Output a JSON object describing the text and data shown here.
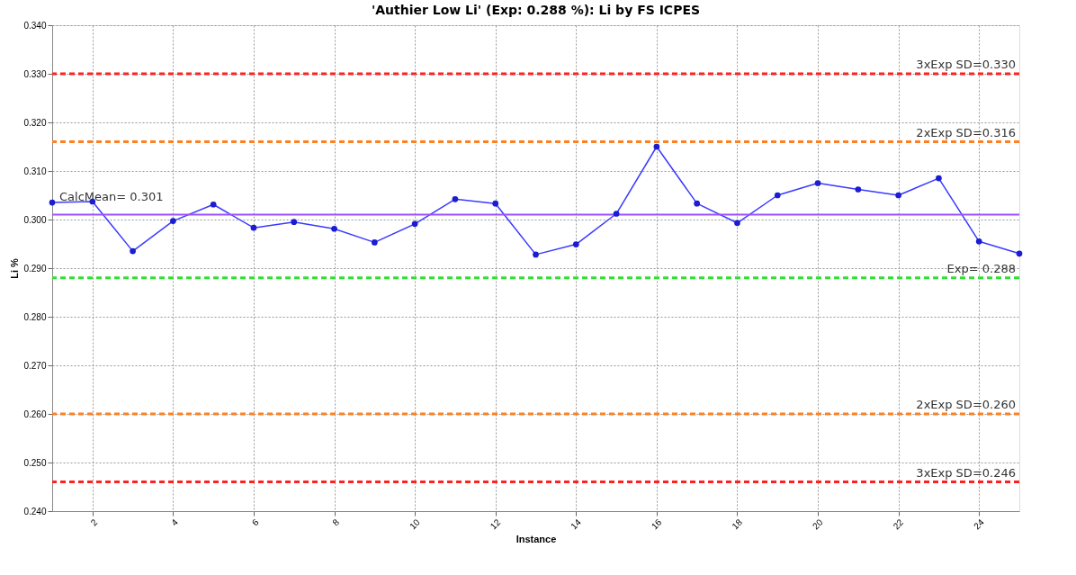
{
  "chart_data": {
    "type": "line",
    "title": "'Authier Low Li' (Exp: 0.288 %): Li by FS ICPES",
    "xlabel": "Instance",
    "ylabel": "Li %",
    "x": [
      1,
      2,
      3,
      4,
      5,
      6,
      7,
      8,
      9,
      10,
      11,
      12,
      13,
      14,
      15,
      16,
      17,
      18,
      19,
      20,
      21,
      22,
      23,
      24,
      25
    ],
    "series": [
      {
        "color": "#3a3aff",
        "values": [
          0.3035,
          0.3037,
          0.2935,
          0.2997,
          0.3031,
          0.2983,
          0.2995,
          0.2981,
          0.2953,
          0.2991,
          0.3042,
          0.3033,
          0.2928,
          0.2949,
          0.3012,
          0.315,
          0.3033,
          0.2993,
          0.305,
          0.3075,
          0.3062,
          0.305,
          0.3085,
          0.2955,
          0.293
        ]
      }
    ],
    "xlim": [
      1,
      25
    ],
    "xticks": [
      2,
      4,
      6,
      8,
      10,
      12,
      14,
      16,
      18,
      20,
      22,
      24
    ],
    "ylim": [
      0.24,
      0.34
    ],
    "yticks": [
      {
        "value": 0.24,
        "label": "0.240"
      },
      {
        "value": 0.25,
        "label": "0.250"
      },
      {
        "value": 0.26,
        "label": "0.260"
      },
      {
        "value": 0.27,
        "label": "0.270"
      },
      {
        "value": 0.28,
        "label": "0.280"
      },
      {
        "value": 0.29,
        "label": "0.290"
      },
      {
        "value": 0.3,
        "label": "0.300"
      },
      {
        "value": 0.31,
        "label": "0.310"
      },
      {
        "value": 0.32,
        "label": "0.320"
      },
      {
        "value": 0.33,
        "label": "0.330"
      },
      {
        "value": 0.34,
        "label": "0.340"
      }
    ],
    "ref_lines": [
      {
        "axis": "y",
        "value": 0.33,
        "label": "3xExp SD=0.330",
        "color": "#ff2020",
        "line_style": "dashed"
      },
      {
        "axis": "y",
        "value": 0.316,
        "label": "2xExp SD=0.316",
        "color": "#ff8020",
        "line_style": "dashed"
      },
      {
        "axis": "y",
        "value": 0.301,
        "label": "CalcMean= 0.301",
        "color": "#9b50ff",
        "line_style": "solid"
      },
      {
        "axis": "y",
        "value": 0.288,
        "label": "Exp= 0.288",
        "color": "#30e030",
        "line_style": "dashed"
      },
      {
        "axis": "y",
        "value": 0.26,
        "label": "2xExp SD=0.260",
        "color": "#ff8020",
        "line_style": "dashed"
      },
      {
        "axis": "y",
        "value": 0.246,
        "label": "3xExp SD=0.246",
        "color": "#ff2020",
        "line_style": "dashed"
      }
    ],
    "grid": true,
    "marker": "circle",
    "line_style": "solid"
  }
}
